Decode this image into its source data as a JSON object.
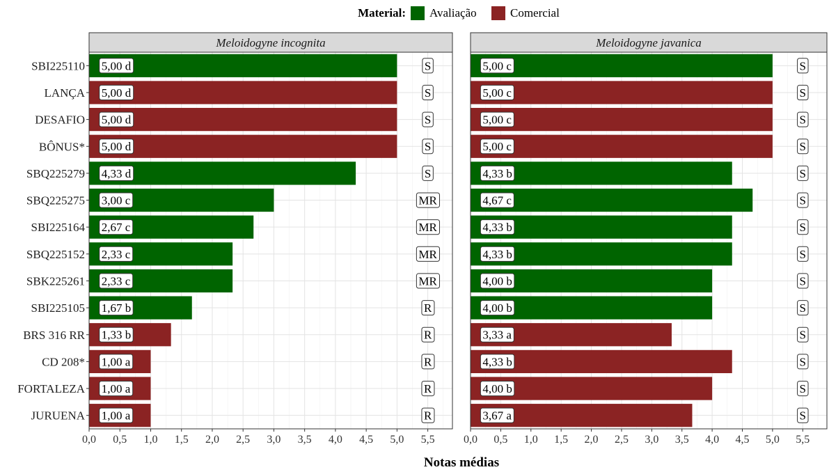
{
  "legend": {
    "title": "Material:",
    "items": [
      {
        "label": "Avaliação",
        "color": "#006400"
      },
      {
        "label": "Comercial",
        "color": "#8B2323"
      }
    ]
  },
  "chart_data": {
    "type": "bar",
    "orientation": "horizontal",
    "xlabel": "Notas médias",
    "xlim": [
      0,
      5.9
    ],
    "xticks": [
      "0,0",
      "0,5",
      "1,0",
      "1,5",
      "2,0",
      "2,5",
      "3,0",
      "3,5",
      "4,0",
      "4,5",
      "5,0",
      "5,5"
    ],
    "grid": true,
    "legend_position": "top",
    "categories": [
      "SBI225110",
      "LANÇA",
      "DESAFIO",
      "BÔNUS*",
      "SBQ225279",
      "SBQ225275",
      "SBI225164",
      "SBQ225152",
      "SBK225261",
      "SBI225105",
      "BRS 316 RR",
      "CD 208*",
      "FORTALEZA",
      "JURUENA"
    ],
    "material": [
      "Avaliação",
      "Comercial",
      "Comercial",
      "Comercial",
      "Avaliação",
      "Avaliação",
      "Avaliação",
      "Avaliação",
      "Avaliação",
      "Avaliação",
      "Comercial",
      "Comercial",
      "Comercial",
      "Comercial"
    ],
    "panels": [
      {
        "title": "Meloidogyne incognita",
        "values": [
          5.0,
          5.0,
          5.0,
          5.0,
          4.33,
          3.0,
          2.67,
          2.33,
          2.33,
          1.67,
          1.33,
          1.0,
          1.0,
          1.0
        ],
        "labels": [
          "5,00 d",
          "5,00 d",
          "5,00 d",
          "5,00 d",
          "4,33 d",
          "3,00 c",
          "2,67 c",
          "2,33 c",
          "2,33 c",
          "1,67 b",
          "1,33 b",
          "1,00 a",
          "1,00 a",
          "1,00 a"
        ],
        "classes": [
          "S",
          "S",
          "S",
          "S",
          "S",
          "MR",
          "MR",
          "MR",
          "MR",
          "R",
          "R",
          "R",
          "R",
          "R"
        ]
      },
      {
        "title": "Meloidogyne javanica",
        "values": [
          5.0,
          5.0,
          5.0,
          5.0,
          4.33,
          4.67,
          4.33,
          4.33,
          4.0,
          4.0,
          3.33,
          4.33,
          4.0,
          3.67
        ],
        "labels": [
          "5,00 c",
          "5,00 c",
          "5,00 c",
          "5,00 c",
          "4,33 b",
          "4,67 c",
          "4,33 b",
          "4,33 b",
          "4,00 b",
          "4,00 b",
          "3,33 a",
          "4,33 b",
          "4,00 b",
          "3,67 a"
        ],
        "classes": [
          "S",
          "S",
          "S",
          "S",
          "S",
          "S",
          "S",
          "S",
          "S",
          "S",
          "S",
          "S",
          "S",
          "S"
        ]
      }
    ]
  }
}
